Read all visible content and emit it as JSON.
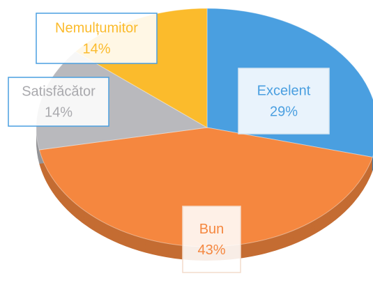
{
  "chart_data": {
    "type": "pie",
    "categories": [
      "Excelent",
      "Bun",
      "Satisfăcător",
      "Nemulțumitor"
    ],
    "values": [
      29,
      43,
      14,
      14
    ],
    "value_labels": [
      "29%",
      "43%",
      "14%",
      "14%"
    ],
    "colors": [
      "#4a9fe0",
      "#f5873f",
      "#b9b9bd",
      "#fbbb2c"
    ],
    "start_angle": 0,
    "direction": "clockwise"
  }
}
